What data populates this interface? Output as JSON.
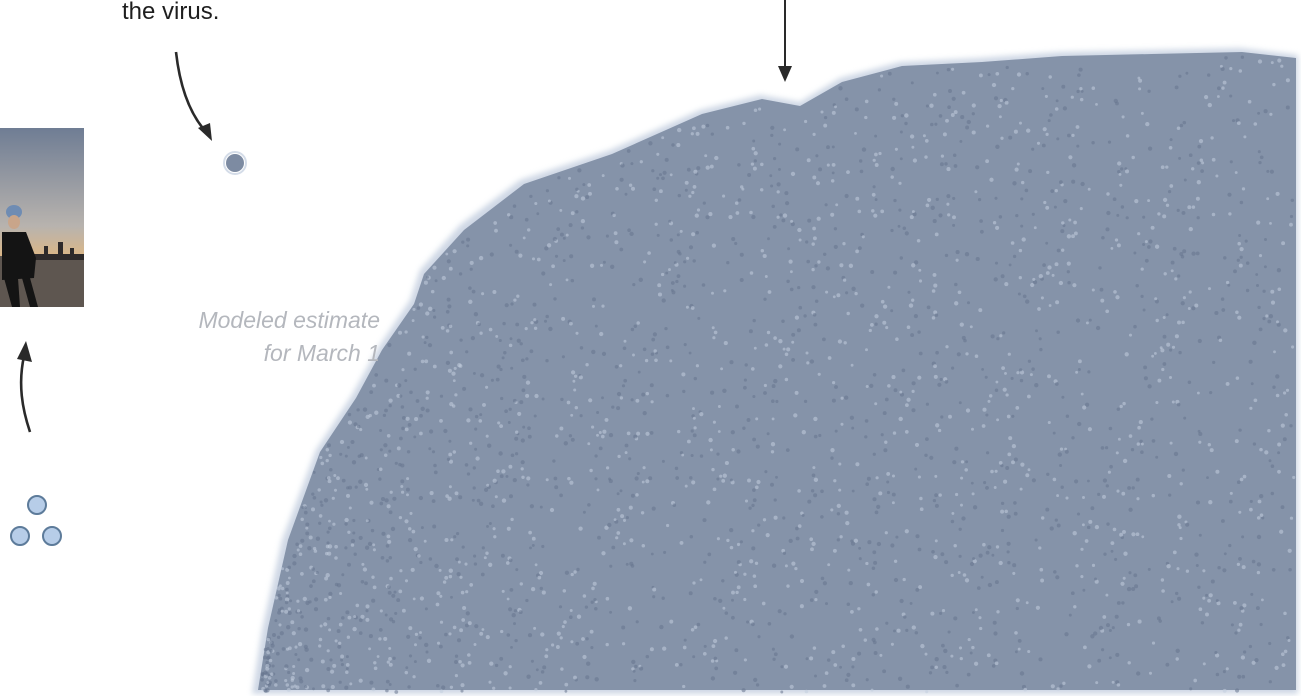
{
  "annotations": {
    "virus_text": "the virus.",
    "estimate_line1": "Modeled estimate",
    "estimate_line2": "for March 1"
  },
  "photo": {
    "subject": "person in winter coat and hat at sunset by a waterfront"
  },
  "colors": {
    "dot": "#7d8ba2",
    "dot_glow": "#c9d3e2",
    "cluster_fill": "#b7cde8",
    "cluster_stroke": "#5d7b9a",
    "arrow": "#2a2a2a",
    "text_dark": "#1e1e1e",
    "text_muted": "#b4b7bd"
  },
  "icons": {
    "curved_arrow_to_dot": "curved-arrow-icon",
    "down_arrow": "down-arrow-icon",
    "up_arrow": "up-arrow-icon",
    "cluster": "three-circles-icon"
  }
}
